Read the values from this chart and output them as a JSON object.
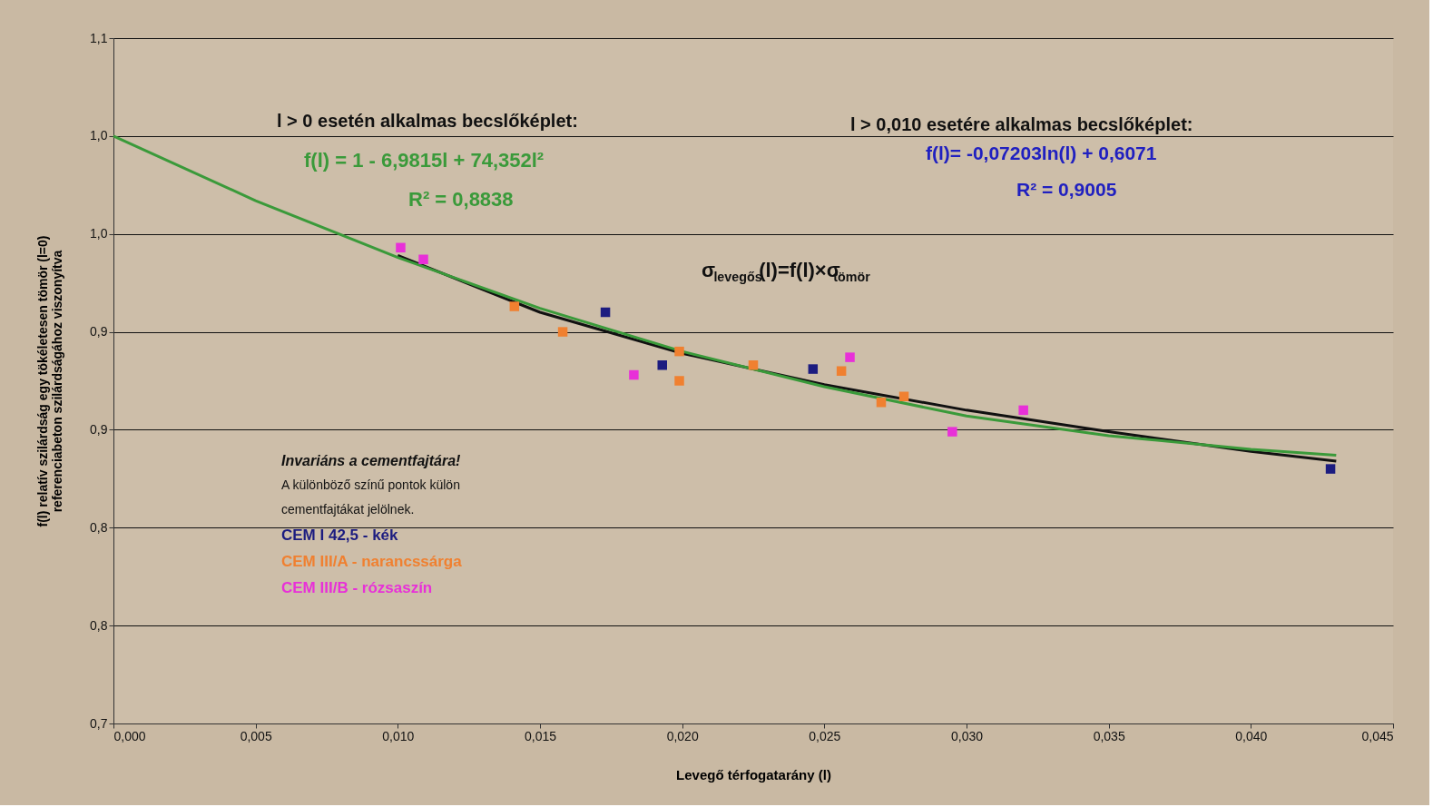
{
  "chart_data": {
    "type": "scatter",
    "xlabel": "Levegő térfogatarány (l)",
    "ylabel": "f(l) relatív szilárdság egy tökéletesen tömör (l=0)\nreferenciabeton szilárdságához viszonyítva",
    "xlim": [
      0,
      0.045
    ],
    "ylim": [
      0.7,
      1.05
    ],
    "xticks": [
      {
        "value": 0,
        "label": "0,000"
      },
      {
        "value": 0.005,
        "label": "0,005"
      },
      {
        "value": 0.01,
        "label": "0,010"
      },
      {
        "value": 0.015,
        "label": "0,015"
      },
      {
        "value": 0.02,
        "label": "0,020"
      },
      {
        "value": 0.025,
        "label": "0,025"
      },
      {
        "value": 0.03,
        "label": "0,030"
      },
      {
        "value": 0.035,
        "label": "0,035"
      },
      {
        "value": 0.04,
        "label": "0,040"
      },
      {
        "value": 0.045,
        "label": "0,045"
      }
    ],
    "yticks": [
      {
        "value": 0.7,
        "label": "0,7"
      },
      {
        "value": 0.75,
        "label": "0,8"
      },
      {
        "value": 0.8,
        "label": "0,8"
      },
      {
        "value": 0.85,
        "label": "0,9"
      },
      {
        "value": 0.9,
        "label": "0,9"
      },
      {
        "value": 0.95,
        "label": "1,0"
      },
      {
        "value": 1.0,
        "label": "1,0"
      },
      {
        "value": 1.05,
        "label": "1,1"
      }
    ],
    "grid": "y",
    "marker": "square",
    "legend": "left",
    "series": [
      {
        "name": "CEM I 42,5 - kék",
        "color": "#1c1c80",
        "x": [
          0.0173,
          0.0193,
          0.0246,
          0.0428
        ],
        "values": [
          0.91,
          0.883,
          0.881,
          0.83
        ]
      },
      {
        "name": "CEM III/A - narancssárga",
        "color": "#f08030",
        "x": [
          0.0141,
          0.0158,
          0.0199,
          0.0199,
          0.0225,
          0.0256,
          0.027,
          0.0278
        ],
        "values": [
          0.913,
          0.9,
          0.89,
          0.875,
          0.883,
          0.88,
          0.864,
          0.867
        ]
      },
      {
        "name": "CEM III/B - rózsaszín",
        "color": "#e830d8",
        "x": [
          0.0101,
          0.0109,
          0.0183,
          0.0259,
          0.0295,
          0.032
        ],
        "values": [
          0.943,
          0.937,
          0.878,
          0.887,
          0.849,
          0.86
        ]
      },
      {
        "type": "line",
        "color": "#111111",
        "line_style": "solid",
        "marker": "none",
        "x": [
          0.01,
          0.015,
          0.02,
          0.025,
          0.03,
          0.035,
          0.04,
          0.043
        ],
        "values": [
          0.939,
          0.91,
          0.889,
          0.873,
          0.86,
          0.849,
          0.839,
          0.834
        ]
      },
      {
        "type": "line",
        "color": "#3a9a3a",
        "line_style": "solid",
        "marker": "none",
        "x": [
          0,
          0.005,
          0.01,
          0.015,
          0.02,
          0.025,
          0.03,
          0.035,
          0.04,
          0.043
        ],
        "values": [
          1.0,
          0.967,
          0.938,
          0.912,
          0.89,
          0.872,
          0.857,
          0.847,
          0.84,
          0.837
        ]
      }
    ],
    "annotations": [
      "l > 0 esetén alkalmas becslőképlet:",
      "f(l) = 1 - 6,9815l + 74,352l²",
      "R² = 0,8838",
      "l > 0,010 esetére alkalmas becslőképlet:",
      "f(l)= -0,07203ln(l) + 0,6071",
      "R² = 0,9005",
      "σ$_{levegős}$(l)=f(l)×σ$_{tömör}$",
      "Invariáns a cementfajtára!",
      "A különböző színű pontok külön",
      "cementfajtákat jelölnek."
    ]
  }
}
